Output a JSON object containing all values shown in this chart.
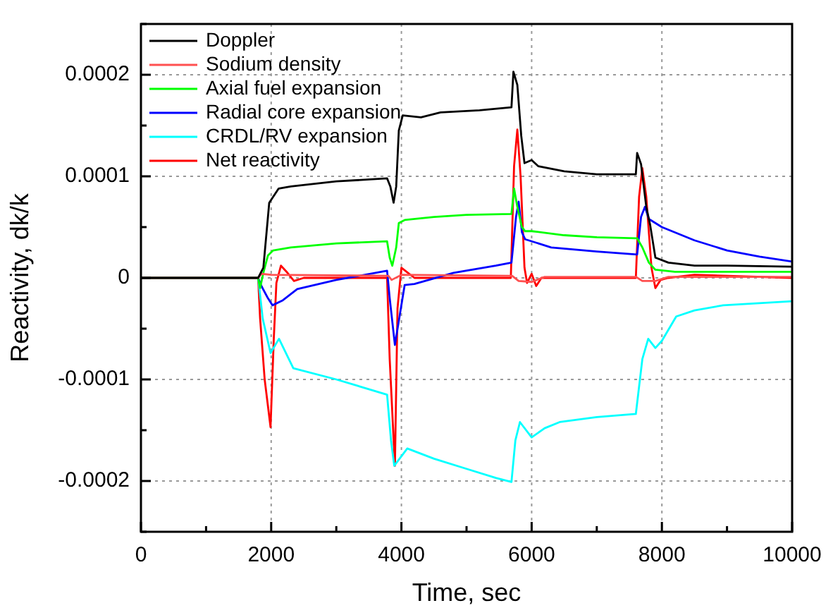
{
  "chart_data": {
    "type": "line",
    "xlabel": "Time, sec",
    "ylabel": "Reactivity, dk/k",
    "xlim": [
      0,
      10000
    ],
    "xticks": [
      0,
      {
        "value": 1000,
        "label": null
      },
      2000,
      {
        "value": 3000,
        "label": null
      },
      4000,
      {
        "value": 5000,
        "label": null
      },
      6000,
      {
        "value": 7000,
        "label": null
      },
      8000,
      {
        "value": 9000,
        "label": null
      },
      10000
    ],
    "ylim": [
      -0.00025,
      0.00025
    ],
    "yticks": [
      {
        "value": -0.00025,
        "label": null
      },
      -0.0002,
      {
        "value": -0.00015,
        "label": null
      },
      -0.0001,
      {
        "value": -5e-05,
        "label": null
      },
      0,
      {
        "value": 5e-05,
        "label": null
      },
      0.0001,
      {
        "value": 0.00015,
        "label": null
      },
      0.0002,
      {
        "value": 0.00025,
        "label": null
      }
    ],
    "grid": true,
    "legend": "top left",
    "marker": "none",
    "line_style": "solid",
    "series": [
      {
        "name": "Doppler",
        "color": "#000000",
        "x": [
          0,
          1800,
          1880,
          1970,
          2115,
          2300,
          3000,
          3780,
          3830,
          3880,
          3920,
          3960,
          4020,
          4300,
          4600,
          5200,
          5690,
          5720,
          5780,
          5840,
          5890,
          6000,
          6100,
          6500,
          7000,
          7600,
          7620,
          7680,
          7760,
          7820,
          7900,
          8100,
          8500,
          9000,
          10000
        ],
        "values": [
          0,
          0,
          1e-05,
          7.4e-05,
          8.8e-05,
          9e-05,
          9.5e-05,
          9.8e-05,
          9e-05,
          7.4e-05,
          9e-05,
          0.000145,
          0.00016,
          0.000158,
          0.000163,
          0.000165,
          0.000168,
          0.000203,
          0.00019,
          0.00014,
          0.000113,
          0.000116,
          0.00011,
          0.000105,
          0.000102,
          0.000102,
          0.000123,
          0.000112,
          7e-05,
          5.2e-05,
          2e-05,
          1.5e-05,
          1.2e-05,
          1.2e-05,
          1.1e-05
        ]
      },
      {
        "name": "Sodium density",
        "color": "#ff5050",
        "x": [
          0,
          1800,
          1850,
          2000,
          3800,
          3850,
          4000,
          5700,
          5800,
          6000,
          6200,
          7600,
          7700,
          7900,
          8100,
          10000
        ],
        "values": [
          0,
          0,
          4e-06,
          3e-06,
          2e-06,
          -2e-06,
          3e-06,
          2e-06,
          -3e-06,
          -4e-06,
          1e-06,
          1e-06,
          -3e-06,
          -3e-06,
          1e-06,
          1e-06
        ]
      },
      {
        "name": "Axial fuel expansion",
        "color": "#00ff00",
        "x": [
          0,
          1800,
          1830,
          1880,
          1950,
          2030,
          2300,
          3000,
          3780,
          3820,
          3860,
          3920,
          3960,
          4050,
          4500,
          5000,
          5690,
          5730,
          5780,
          5850,
          5900,
          6000,
          6500,
          7000,
          7620,
          7700,
          7800,
          7900,
          8200,
          9000,
          10000
        ],
        "values": [
          0,
          0,
          -1e-05,
          5e-06,
          2.2e-05,
          2.7e-05,
          3e-05,
          3.4e-05,
          3.6e-05,
          2e-05,
          1.2e-05,
          3e-05,
          5.4e-05,
          5.7e-05,
          6e-05,
          6.2e-05,
          6.3e-05,
          8.8e-05,
          7e-05,
          5e-05,
          4.6e-05,
          4.6e-05,
          4.2e-05,
          4e-05,
          3.9e-05,
          3e-05,
          1.5e-05,
          8e-06,
          6e-06,
          6e-06,
          6e-06
        ]
      },
      {
        "name": "Radial core expansion",
        "color": "#0000ff",
        "x": [
          0,
          1800,
          1850,
          1950,
          2020,
          2180,
          2400,
          3000,
          3780,
          3820,
          3900,
          4050,
          4200,
          4800,
          5450,
          5690,
          5760,
          5800,
          5850,
          5900,
          6300,
          7000,
          7620,
          7680,
          7740,
          7800,
          8000,
          8500,
          9000,
          9500,
          10000
        ],
        "values": [
          0,
          0,
          -8e-06,
          -2e-05,
          -2.7e-05,
          -2.2e-05,
          -1.1e-05,
          -2e-06,
          7e-06,
          -2e-05,
          -6.6e-05,
          -7e-06,
          -6e-06,
          5e-06,
          1.2e-05,
          1.5e-05,
          6e-05,
          7.5e-05,
          4.5e-05,
          3.8e-05,
          3e-05,
          2.6e-05,
          2.3e-05,
          6e-05,
          7e-05,
          5.8e-05,
          5e-05,
          3.7e-05,
          2.7e-05,
          2.1e-05,
          1.6e-05
        ]
      },
      {
        "name": "CRDL/RV expansion",
        "color": "#00ffff",
        "x": [
          0,
          1800,
          1870,
          1990,
          2120,
          2340,
          3000,
          3780,
          3840,
          3890,
          4090,
          4500,
          5000,
          5450,
          5690,
          5750,
          5820,
          6000,
          6200,
          6430,
          7000,
          7600,
          7700,
          7790,
          7900,
          8000,
          8220,
          8500,
          8940,
          10000
        ],
        "values": [
          0,
          0,
          -4e-05,
          -7.4e-05,
          -6e-05,
          -8.9e-05,
          -0.0001,
          -0.000115,
          -0.00016,
          -0.000185,
          -0.000168,
          -0.000178,
          -0.000188,
          -0.000197,
          -0.000201,
          -0.00016,
          -0.000142,
          -0.000157,
          -0.000148,
          -0.000142,
          -0.000137,
          -0.000134,
          -8e-05,
          -6e-05,
          -6.9e-05,
          -6.2e-05,
          -3.8e-05,
          -3.2e-05,
          -2.7e-05,
          -2.3e-05
        ]
      },
      {
        "name": "Net reactivity",
        "color": "#ff0000",
        "x": [
          0,
          1800,
          1830,
          1900,
          1990,
          2040,
          2080,
          2150,
          2250,
          2350,
          2500,
          3780,
          3820,
          3900,
          3940,
          4000,
          4100,
          4200,
          5680,
          5730,
          5780,
          5830,
          5890,
          5930,
          6000,
          6070,
          6150,
          7600,
          7650,
          7700,
          7760,
          7840,
          7900,
          7980,
          8100,
          8500,
          10000
        ],
        "values": [
          0,
          0,
          -4e-05,
          -0.0001,
          -0.000147,
          -6e-05,
          -5e-06,
          1.2e-05,
          5e-06,
          -3e-06,
          0,
          0,
          -8e-05,
          -0.000185,
          -3e-05,
          1e-05,
          5e-06,
          0,
          0,
          0.00011,
          0.000146,
          0.0001,
          1e-05,
          -5e-06,
          4e-06,
          -8e-06,
          0,
          0,
          8e-05,
          0.000108,
          8e-05,
          1e-05,
          -1e-05,
          -2e-06,
          0,
          3e-06,
          0
        ]
      }
    ]
  }
}
